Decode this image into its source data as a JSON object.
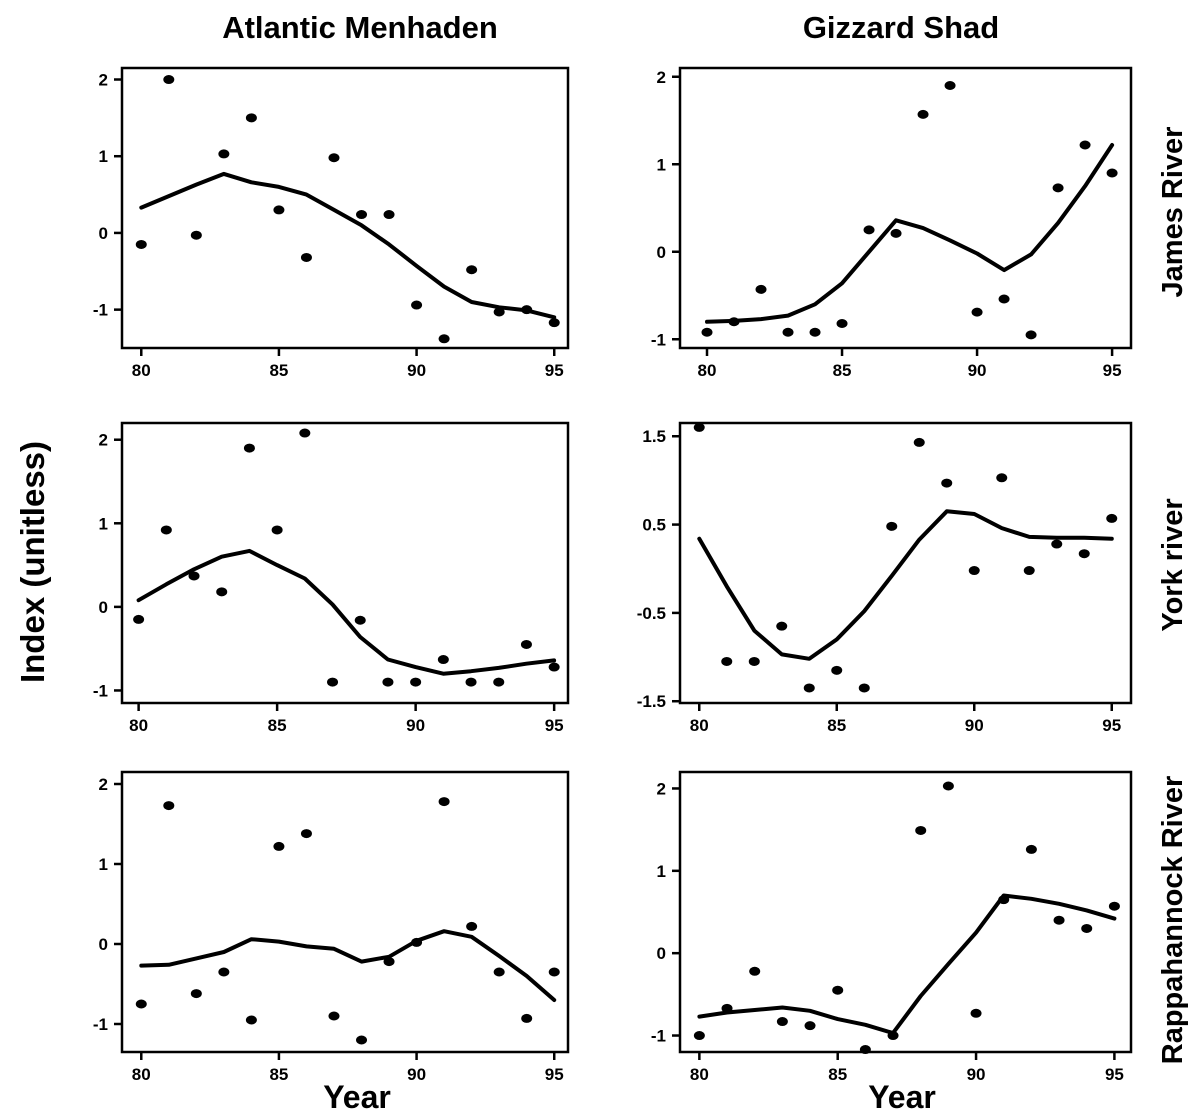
{
  "figure": {
    "col_titles": [
      "Atlantic Menhaden",
      "Gizzard Shad"
    ],
    "row_titles": [
      "James River",
      "York river",
      "Rappahannock River"
    ],
    "ylabel": "Index (unitless)",
    "xlabel": "Year"
  },
  "chart_data": [
    {
      "type": "scatter",
      "panel": "Atlantic Menhaden - James River",
      "xlim": [
        79.3,
        95.5
      ],
      "ylim": [
        -1.5,
        2.15
      ],
      "xticks": [
        80,
        85,
        90,
        95
      ],
      "yticks": [
        2,
        1,
        0,
        -1
      ],
      "ytick_labels": [
        "2",
        "1",
        "0",
        "-1"
      ],
      "points": [
        [
          80,
          -0.15
        ],
        [
          81,
          2.0
        ],
        [
          82,
          -0.03
        ],
        [
          83,
          1.03
        ],
        [
          84,
          1.5
        ],
        [
          85,
          0.3
        ],
        [
          86,
          -0.32
        ],
        [
          87,
          0.98
        ],
        [
          88,
          0.24
        ],
        [
          89,
          0.24
        ],
        [
          90,
          -0.94
        ],
        [
          91,
          -1.38
        ],
        [
          92,
          -0.48
        ],
        [
          93,
          -1.03
        ],
        [
          94,
          -1.0
        ],
        [
          95,
          -1.17
        ]
      ],
      "series": [
        {
          "x": [
            80,
            81,
            82,
            83,
            84,
            85,
            86,
            87,
            88,
            89,
            90,
            91,
            92,
            93,
            94,
            95
          ],
          "values": [
            0.33,
            0.48,
            0.63,
            0.77,
            0.66,
            0.6,
            0.5,
            0.3,
            0.1,
            -0.15,
            -0.43,
            -0.7,
            -0.9,
            -0.97,
            -1.01,
            -1.1
          ]
        }
      ]
    },
    {
      "type": "scatter",
      "panel": "Gizzard Shad - James River",
      "xlim": [
        79.0,
        95.7
      ],
      "ylim": [
        -1.1,
        2.1
      ],
      "xticks": [
        80,
        85,
        90,
        95
      ],
      "yticks": [
        2,
        1,
        0,
        -1
      ],
      "ytick_labels": [
        "2",
        "1",
        "0",
        "-1"
      ],
      "points": [
        [
          80,
          -0.92
        ],
        [
          81,
          -0.8
        ],
        [
          82,
          -0.43
        ],
        [
          83,
          -0.92
        ],
        [
          84,
          -0.92
        ],
        [
          85,
          -0.82
        ],
        [
          86,
          0.25
        ],
        [
          87,
          0.21
        ],
        [
          88,
          1.57
        ],
        [
          89,
          1.9
        ],
        [
          90,
          -0.69
        ],
        [
          91,
          -0.54
        ],
        [
          92,
          -0.95
        ],
        [
          93,
          0.73
        ],
        [
          94,
          1.22
        ],
        [
          95,
          0.9
        ]
      ],
      "series": [
        {
          "x": [
            80,
            81,
            82,
            83,
            84,
            85,
            86,
            87,
            88,
            89,
            90,
            91,
            92,
            93,
            94,
            95
          ],
          "values": [
            -0.8,
            -0.79,
            -0.77,
            -0.73,
            -0.6,
            -0.36,
            0.0,
            0.36,
            0.27,
            0.13,
            -0.02,
            -0.21,
            -0.03,
            0.33,
            0.75,
            1.22
          ]
        }
      ]
    },
    {
      "type": "scatter",
      "panel": "Atlantic Menhaden - York river",
      "xlim": [
        79.4,
        95.5
      ],
      "ylim": [
        -1.15,
        2.2
      ],
      "xticks": [
        80,
        85,
        90,
        95
      ],
      "yticks": [
        2,
        1,
        0,
        -1
      ],
      "ytick_labels": [
        "2",
        "1",
        "0",
        "-1"
      ],
      "points": [
        [
          80,
          -0.15
        ],
        [
          81,
          0.92
        ],
        [
          82,
          0.37
        ],
        [
          83,
          0.18
        ],
        [
          84,
          1.9
        ],
        [
          85,
          0.92
        ],
        [
          86,
          2.08
        ],
        [
          87,
          -0.9
        ],
        [
          88,
          -0.16
        ],
        [
          89,
          -0.9
        ],
        [
          90,
          -0.9
        ],
        [
          91,
          -0.63
        ],
        [
          92,
          -0.9
        ],
        [
          93,
          -0.9
        ],
        [
          94,
          -0.45
        ],
        [
          95,
          -0.72
        ]
      ],
      "series": [
        {
          "x": [
            80,
            81,
            82,
            83,
            84,
            85,
            86,
            87,
            88,
            89,
            90,
            91,
            92,
            93,
            94,
            95
          ],
          "values": [
            0.08,
            0.27,
            0.45,
            0.6,
            0.67,
            0.5,
            0.34,
            0.03,
            -0.36,
            -0.63,
            -0.72,
            -0.8,
            -0.77,
            -0.73,
            -0.68,
            -0.64
          ]
        }
      ]
    },
    {
      "type": "scatter",
      "panel": "Gizzard Shad - York river",
      "xlim": [
        79.3,
        95.7
      ],
      "ylim": [
        -1.52,
        1.65
      ],
      "xticks": [
        80,
        85,
        90,
        95
      ],
      "yticks": [
        1.5,
        0.5,
        -0.5,
        -1.5
      ],
      "ytick_labels": [
        "1.5",
        "0.5",
        "-0.5",
        "-1.5"
      ],
      "points": [
        [
          80,
          1.6
        ],
        [
          81,
          -1.05
        ],
        [
          82,
          -1.05
        ],
        [
          83,
          -0.65
        ],
        [
          84,
          -1.35
        ],
        [
          85,
          -1.15
        ],
        [
          86,
          -1.35
        ],
        [
          87,
          0.48
        ],
        [
          88,
          1.43
        ],
        [
          89,
          0.97
        ],
        [
          90,
          -0.02
        ],
        [
          91,
          1.03
        ],
        [
          92,
          -0.02
        ],
        [
          93,
          0.28
        ],
        [
          94,
          0.17
        ],
        [
          95,
          0.57
        ]
      ],
      "series": [
        {
          "x": [
            80,
            81,
            82,
            83,
            84,
            85,
            86,
            87,
            88,
            89,
            90,
            91,
            92,
            93,
            94,
            95
          ],
          "values": [
            0.34,
            -0.2,
            -0.7,
            -0.97,
            -1.02,
            -0.8,
            -0.48,
            -0.08,
            0.33,
            0.65,
            0.62,
            0.46,
            0.36,
            0.35,
            0.35,
            0.34
          ]
        }
      ]
    },
    {
      "type": "scatter",
      "panel": "Atlantic Menhaden - Rappahannock River",
      "xlim": [
        79.3,
        95.5
      ],
      "ylim": [
        -1.35,
        2.15
      ],
      "xticks": [
        80,
        85,
        90,
        95
      ],
      "yticks": [
        2,
        1,
        0,
        -1
      ],
      "ytick_labels": [
        "2",
        "1",
        "0",
        "-1"
      ],
      "points": [
        [
          80,
          -0.75
        ],
        [
          81,
          1.73
        ],
        [
          82,
          -0.62
        ],
        [
          83,
          -0.35
        ],
        [
          84,
          -0.95
        ],
        [
          85,
          1.22
        ],
        [
          86,
          1.38
        ],
        [
          87,
          -0.9
        ],
        [
          88,
          -1.2
        ],
        [
          89,
          -0.22
        ],
        [
          90,
          0.02
        ],
        [
          91,
          1.78
        ],
        [
          92,
          0.22
        ],
        [
          93,
          -0.35
        ],
        [
          94,
          -0.93
        ],
        [
          95,
          -0.35
        ]
      ],
      "series": [
        {
          "x": [
            80,
            81,
            82,
            83,
            84,
            85,
            86,
            87,
            88,
            89,
            90,
            91,
            92,
            93,
            94,
            95
          ],
          "values": [
            -0.27,
            -0.26,
            -0.18,
            -0.1,
            0.06,
            0.03,
            -0.03,
            -0.06,
            -0.22,
            -0.16,
            0.04,
            0.16,
            0.09,
            -0.15,
            -0.4,
            -0.7
          ]
        }
      ]
    },
    {
      "type": "scatter",
      "panel": "Gizzard Shad - Rappahannock River",
      "xlim": [
        79.3,
        95.6
      ],
      "ylim": [
        -1.2,
        2.2
      ],
      "xticks": [
        80,
        85,
        90,
        95
      ],
      "yticks": [
        2,
        1,
        0,
        -1
      ],
      "ytick_labels": [
        "2",
        "1",
        "0",
        "-1"
      ],
      "points": [
        [
          80,
          -1.0
        ],
        [
          81,
          -0.67
        ],
        [
          82,
          -0.22
        ],
        [
          83,
          -0.83
        ],
        [
          84,
          -0.88
        ],
        [
          85,
          -0.45
        ],
        [
          86,
          -1.17
        ],
        [
          87,
          -1.0
        ],
        [
          88,
          1.49
        ],
        [
          89,
          2.03
        ],
        [
          90,
          -0.73
        ],
        [
          91,
          0.65
        ],
        [
          92,
          1.26
        ],
        [
          93,
          0.4
        ],
        [
          94,
          0.3
        ],
        [
          95,
          0.57
        ]
      ],
      "series": [
        {
          "x": [
            80,
            81,
            82,
            83,
            84,
            85,
            86,
            87,
            88,
            89,
            90,
            91,
            92,
            93,
            94,
            95
          ],
          "values": [
            -0.77,
            -0.72,
            -0.69,
            -0.66,
            -0.7,
            -0.8,
            -0.87,
            -0.97,
            -0.52,
            -0.13,
            0.25,
            0.7,
            0.66,
            0.6,
            0.52,
            0.42
          ]
        }
      ]
    }
  ]
}
